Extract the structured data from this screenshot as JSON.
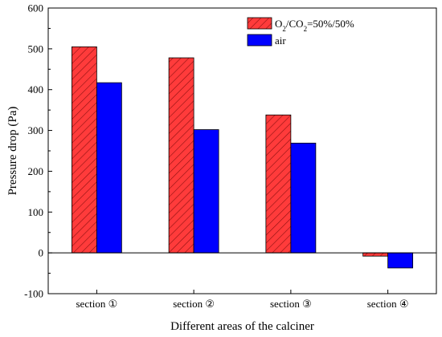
{
  "chart_data": {
    "type": "bar",
    "xlabel": "Different areas of the calciner",
    "ylabel": "Pressure drop (Pa)",
    "categories": [
      "section ①",
      "section ②",
      "section ③",
      "section ④"
    ],
    "ylim": [
      -100,
      600
    ],
    "yticks": [
      -100,
      0,
      100,
      200,
      300,
      400,
      500,
      600
    ],
    "legend_position": "top-right",
    "series": [
      {
        "name": "O2/CO2=50%/50%",
        "name_parts": {
          "a": "O",
          "a_sub": "2",
          "b": "/CO",
          "b_sub": "2",
          "c": "=50%/50%"
        },
        "values": [
          505,
          478,
          338,
          -8
        ],
        "color": "#ff3b3b",
        "pattern": "diagonal-hatch"
      },
      {
        "name": "air",
        "values": [
          417,
          302,
          269,
          -37
        ],
        "color": "#0000ff",
        "pattern": "solid"
      }
    ]
  }
}
